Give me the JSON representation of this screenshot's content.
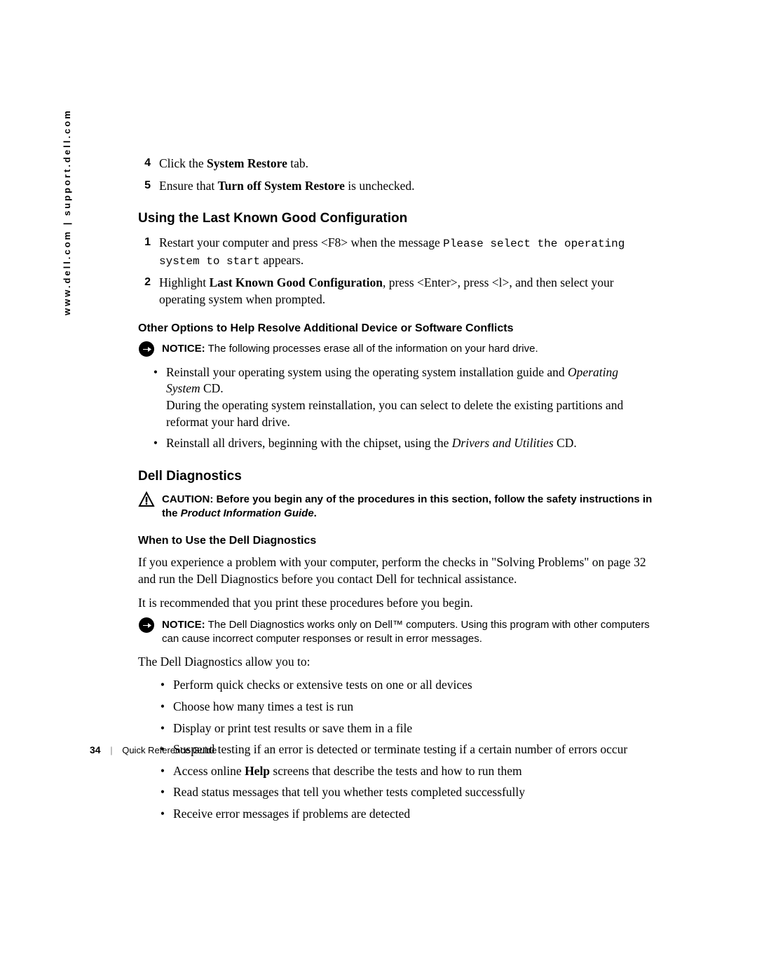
{
  "sidebar": "www.dell.com | support.dell.com",
  "steps_top": [
    {
      "n": "4",
      "pre": "Click the ",
      "bold": "System Restore",
      "post": " tab."
    },
    {
      "n": "5",
      "pre": "Ensure that ",
      "bold": "Turn off System Restore",
      "post": " is unchecked."
    }
  ],
  "h2_lkg": "Using the Last Known Good Configuration",
  "lkg_steps": {
    "s1": {
      "n": "1",
      "a": "Restart your computer and press <F8> when the message ",
      "mono": "Please select the operating system to start",
      "b": " appears."
    },
    "s2": {
      "n": "2",
      "a": "Highlight ",
      "bold": "Last Known Good Configuration",
      "b": ", press <Enter>, press <l>, and then select your operating system when prompted."
    }
  },
  "h3_other": "Other Options to Help Resolve Additional Device or Software Conflicts",
  "notice1": {
    "label": "NOTICE:",
    "text": " The following processes erase all of the information on your hard drive."
  },
  "other_bullets": {
    "b1": {
      "a": "Reinstall your operating system using the operating system installation guide and ",
      "it": "Operating System",
      "b": " CD.",
      "line2": "During the operating system reinstallation, you can select to delete the existing partitions and reformat your hard drive."
    },
    "b2": {
      "a": "Reinstall all drivers, beginning with the chipset, using the ",
      "it": "Drivers and Utilities",
      "b": " CD."
    }
  },
  "h2_dd": "Dell Diagnostics",
  "caution": {
    "label": "CAUTION:",
    "a": " Before you begin any of the procedures in this section, follow the safety instructions in the ",
    "it": "Product Information Guide",
    "b": "."
  },
  "h3_when": "When to Use the Dell Diagnostics",
  "para1": "If you experience a problem with your computer, perform the checks in \"Solving Problems\" on page 32 and run the Dell Diagnostics before you contact Dell for technical assistance.",
  "para2": "It is recommended that you print these procedures before you begin.",
  "notice2": {
    "label": "NOTICE:",
    "text": " The Dell Diagnostics works only on Dell™ computers. Using this program with other computers can cause incorrect computer responses or result in error messages."
  },
  "para3": "The Dell Diagnostics allow you to:",
  "dd_bullets": [
    "Perform quick checks or extensive tests on one or all devices",
    "Choose how many times a test is run",
    "Display or print test results or save them in a file",
    "Suspend testing if an error is detected or terminate testing if a certain number of errors occur",
    "__HELP__",
    "Read status messages that tell you whether tests completed successfully",
    "Receive error messages if problems are detected"
  ],
  "dd_help": {
    "a": "Access online ",
    "bold": "Help",
    "b": " screens that describe the tests and how to run them"
  },
  "footer": {
    "page": "34",
    "title": "Quick Reference Guide"
  }
}
